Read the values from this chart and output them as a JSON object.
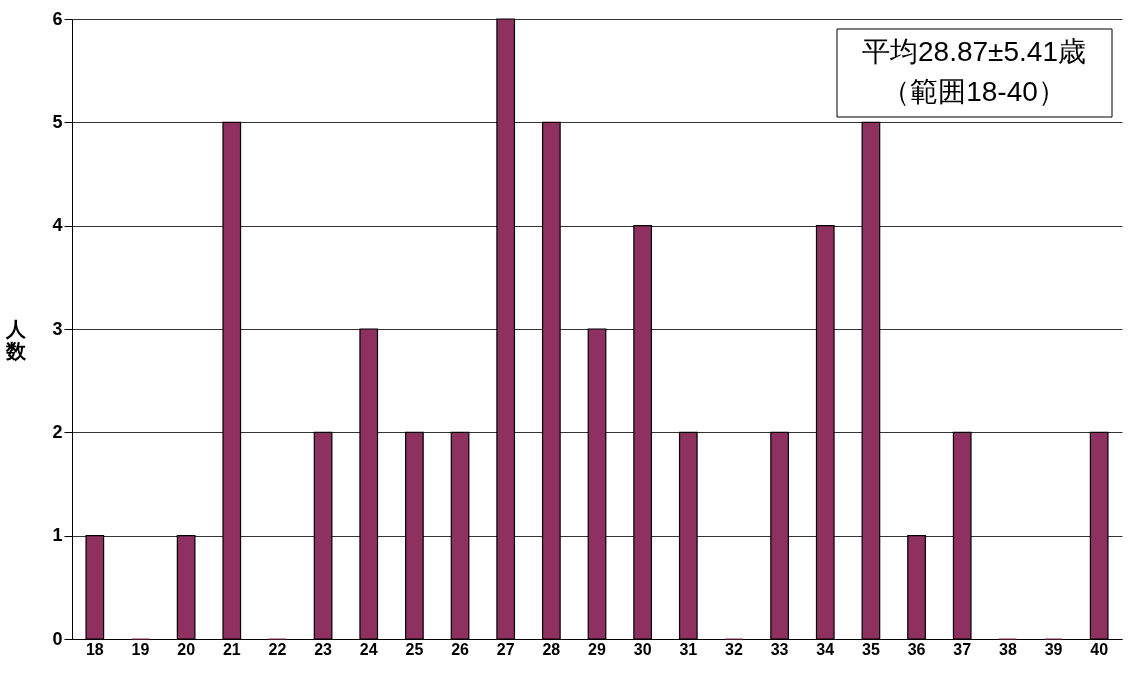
{
  "chart_data": {
    "type": "bar",
    "ylabel": "人数",
    "categories": [
      "18",
      "19",
      "20",
      "21",
      "22",
      "23",
      "24",
      "25",
      "26",
      "27",
      "28",
      "29",
      "30",
      "31",
      "32",
      "33",
      "34",
      "35",
      "36",
      "37",
      "38",
      "39",
      "40"
    ],
    "values": [
      1,
      0,
      1,
      5,
      0,
      2,
      3,
      2,
      2,
      6,
      5,
      3,
      4,
      2,
      0,
      2,
      4,
      5,
      1,
      2,
      0,
      0,
      2
    ],
    "color": "#8e3060",
    "ylim": [
      0,
      6
    ],
    "yticks": [
      0,
      1,
      2,
      3,
      4,
      5,
      6
    ],
    "grid": "y",
    "annotations": [
      "平均28.87±5.41歳",
      "（範囲18-40）"
    ]
  }
}
